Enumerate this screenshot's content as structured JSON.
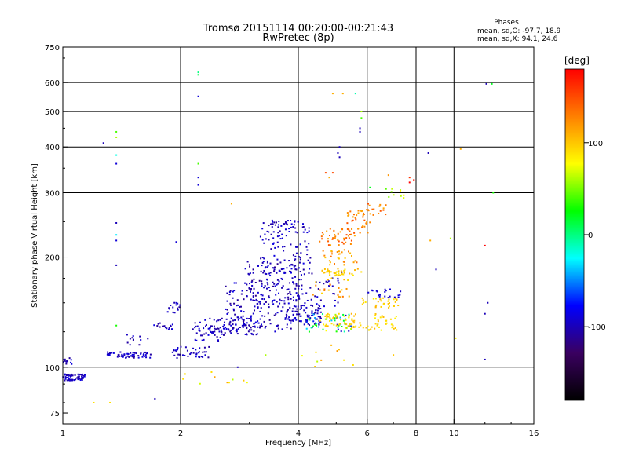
{
  "chart_data": {
    "type": "scatter",
    "title": "Tromsø 20151114 00:20:00-00:21:43",
    "subtitle": "RwPretec (8p)",
    "xlabel": "Frequency [MHz]",
    "ylabel": "Stationary phase Virtual Height [km]",
    "x_scale": "log",
    "y_scale": "log",
    "xlim": [
      1,
      16
    ],
    "ylim": [
      70,
      750
    ],
    "x_ticks": [
      1,
      2,
      4,
      6,
      8,
      10,
      16
    ],
    "x_tick_labels": [
      "1",
      "2",
      "4",
      "6",
      "8",
      "10",
      "16"
    ],
    "x_grid": [
      2,
      4,
      6,
      8,
      10
    ],
    "y_ticks": [
      75,
      100,
      200,
      300,
      400,
      500,
      600,
      750
    ],
    "y_tick_labels": [
      "75",
      "100",
      "200",
      "300",
      "400",
      "500",
      "600",
      "750"
    ],
    "y_grid": [
      100,
      200,
      300,
      400,
      500,
      600
    ],
    "grid": true,
    "phases_box": {
      "title": "Phases",
      "line_o": "mean, sd,O: -97.7, 18.9",
      "line_x": "mean, sd,X:  94.1, 24.6"
    },
    "colorbar": {
      "label": "[deg]",
      "range": [
        -180,
        180
      ],
      "tick_values": [
        100,
        0,
        -100
      ],
      "tick_labels": [
        "100",
        "0",
        "-100"
      ],
      "colormap": [
        "#000000",
        "#3a0060",
        "#0000ff",
        "#00ffff",
        "#00ff00",
        "#ffff00",
        "#ff8000",
        "#ff0000"
      ]
    },
    "clusters": [
      {
        "x": [
          1.0,
          1.14
        ],
        "y": [
          92,
          96
        ],
        "n": 60,
        "phase": [
          -110,
          -85
        ]
      },
      {
        "x": [
          1.0,
          1.06
        ],
        "y": [
          102,
          106
        ],
        "n": 12,
        "phase": [
          -110,
          -85
        ]
      },
      {
        "x": [
          1.3,
          1.35
        ],
        "y": [
          107,
          110
        ],
        "n": 10,
        "phase": [
          -110,
          -85
        ]
      },
      {
        "x": [
          1.38,
          1.7
        ],
        "y": [
          106,
          110
        ],
        "n": 50,
        "phase": [
          -110,
          -85
        ]
      },
      {
        "x": [
          1.45,
          1.65
        ],
        "y": [
          115,
          123
        ],
        "n": 12,
        "phase": [
          -110,
          -85
        ]
      },
      {
        "x": [
          1.7,
          1.92
        ],
        "y": [
          126,
          132
        ],
        "n": 15,
        "phase": [
          -110,
          -85
        ]
      },
      {
        "x": [
          1.85,
          2.0
        ],
        "y": [
          140,
          152
        ],
        "n": 15,
        "phase": [
          -110,
          -85
        ]
      },
      {
        "x": [
          1.9,
          2.4
        ],
        "y": [
          106,
          114
        ],
        "n": 40,
        "phase": [
          -110,
          -85
        ]
      },
      {
        "x": [
          2.1,
          2.6
        ],
        "y": [
          115,
          135
        ],
        "n": 40,
        "phase": [
          -110,
          -85
        ]
      },
      {
        "x": [
          2.2,
          3.2
        ],
        "y": [
          122,
          136
        ],
        "n": 80,
        "phase": [
          -110,
          -85
        ]
      },
      {
        "x": [
          2.6,
          3.9
        ],
        "y": [
          125,
          170
        ],
        "n": 160,
        "phase": [
          -115,
          -85
        ]
      },
      {
        "x": [
          2.9,
          4.2
        ],
        "y": [
          150,
          195
        ],
        "n": 90,
        "phase": [
          -115,
          -85
        ]
      },
      {
        "x": [
          3.2,
          4.3
        ],
        "y": [
          180,
          250
        ],
        "n": 100,
        "phase": [
          -110,
          -85
        ]
      },
      {
        "x": [
          3.4,
          4.0
        ],
        "y": [
          240,
          252
        ],
        "n": 25,
        "phase": [
          -110,
          -85
        ]
      },
      {
        "x": [
          3.7,
          4.6
        ],
        "y": [
          130,
          148
        ],
        "n": 80,
        "phase": [
          -110,
          -85
        ]
      },
      {
        "x": [
          3.8,
          5.2
        ],
        "y": [
          145,
          185
        ],
        "n": 50,
        "phase": [
          -110,
          -85
        ]
      },
      {
        "x": [
          4.2,
          5.5
        ],
        "y": [
          125,
          140
        ],
        "n": 60,
        "phase": [
          -100,
          90
        ]
      },
      {
        "x": [
          4.6,
          5.6
        ],
        "y": [
          128,
          140
        ],
        "n": 50,
        "phase": [
          85,
          110
        ]
      },
      {
        "x": [
          4.6,
          5.8
        ],
        "y": [
          178,
          186
        ],
        "n": 40,
        "phase": [
          85,
          110
        ]
      },
      {
        "x": [
          4.6,
          5.7
        ],
        "y": [
          190,
          210
        ],
        "n": 30,
        "phase": [
          95,
          140
        ]
      },
      {
        "x": [
          4.5,
          5.6
        ],
        "y": [
          215,
          240
        ],
        "n": 40,
        "phase": [
          110,
          150
        ]
      },
      {
        "x": [
          5.3,
          6.1
        ],
        "y": [
          230,
          270
        ],
        "n": 40,
        "phase": [
          110,
          150
        ]
      },
      {
        "x": [
          4.3,
          5.4
        ],
        "y": [
          155,
          175
        ],
        "n": 25,
        "phase": [
          90,
          140
        ]
      },
      {
        "x": [
          5.6,
          7.2
        ],
        "y": [
          126,
          140
        ],
        "n": 40,
        "phase": [
          80,
          105
        ]
      },
      {
        "x": [
          5.8,
          7.2
        ],
        "y": [
          145,
          155
        ],
        "n": 30,
        "phase": [
          85,
          110
        ]
      },
      {
        "x": [
          5.9,
          7.3
        ],
        "y": [
          155,
          165
        ],
        "n": 20,
        "phase": [
          -100,
          -85
        ]
      },
      {
        "x": [
          6.0,
          6.7
        ],
        "y": [
          260,
          280
        ],
        "n": 15,
        "phase": [
          110,
          150
        ]
      },
      {
        "x": [
          6.7,
          7.5
        ],
        "y": [
          290,
          310
        ],
        "n": 10,
        "phase": [
          40,
          90
        ]
      },
      {
        "x": [
          4.0,
          6.0
        ],
        "y": [
          100,
          115
        ],
        "n": 10,
        "phase": [
          60,
          130
        ]
      },
      {
        "x": [
          2.0,
          3.0
        ],
        "y": [
          90,
          96
        ],
        "n": 8,
        "phase": [
          60,
          120
        ]
      }
    ],
    "stray_points": [
      {
        "x": 2.22,
        "y": 640,
        "phase": 0
      },
      {
        "x": 2.22,
        "y": 630,
        "phase": 10
      },
      {
        "x": 2.22,
        "y": 550,
        "phase": -90
      },
      {
        "x": 2.22,
        "y": 360,
        "phase": 40
      },
      {
        "x": 2.22,
        "y": 330,
        "phase": -90
      },
      {
        "x": 2.22,
        "y": 315,
        "phase": -90
      },
      {
        "x": 1.27,
        "y": 410,
        "phase": -100
      },
      {
        "x": 1.37,
        "y": 440,
        "phase": 40
      },
      {
        "x": 1.37,
        "y": 425,
        "phase": 60
      },
      {
        "x": 1.37,
        "y": 380,
        "phase": -20
      },
      {
        "x": 1.37,
        "y": 360,
        "phase": -90
      },
      {
        "x": 1.37,
        "y": 248,
        "phase": -100
      },
      {
        "x": 1.37,
        "y": 230,
        "phase": -30
      },
      {
        "x": 1.37,
        "y": 222,
        "phase": -90
      },
      {
        "x": 1.37,
        "y": 190,
        "phase": -100
      },
      {
        "x": 1.37,
        "y": 130,
        "phase": 30
      },
      {
        "x": 1.2,
        "y": 80,
        "phase": 90
      },
      {
        "x": 1.32,
        "y": 80,
        "phase": 90
      },
      {
        "x": 1.72,
        "y": 82,
        "phase": -100
      },
      {
        "x": 1.95,
        "y": 220,
        "phase": -90
      },
      {
        "x": 2.7,
        "y": 280,
        "phase": 110
      },
      {
        "x": 2.8,
        "y": 100,
        "phase": -100
      },
      {
        "x": 4.9,
        "y": 560,
        "phase": 110
      },
      {
        "x": 5.2,
        "y": 560,
        "phase": 110
      },
      {
        "x": 5.6,
        "y": 560,
        "phase": -10
      },
      {
        "x": 5.8,
        "y": 500,
        "phase": 60
      },
      {
        "x": 5.8,
        "y": 480,
        "phase": 40
      },
      {
        "x": 5.75,
        "y": 450,
        "phase": -100
      },
      {
        "x": 5.75,
        "y": 440,
        "phase": -100
      },
      {
        "x": 5.1,
        "y": 400,
        "phase": -100
      },
      {
        "x": 5.05,
        "y": 385,
        "phase": -100
      },
      {
        "x": 5.1,
        "y": 375,
        "phase": -100
      },
      {
        "x": 4.7,
        "y": 340,
        "phase": 150
      },
      {
        "x": 4.9,
        "y": 340,
        "phase": 150
      },
      {
        "x": 4.8,
        "y": 330,
        "phase": 110
      },
      {
        "x": 6.1,
        "y": 310,
        "phase": 20
      },
      {
        "x": 6.8,
        "y": 335,
        "phase": 120
      },
      {
        "x": 7.7,
        "y": 320,
        "phase": 180
      },
      {
        "x": 7.7,
        "y": 330,
        "phase": 160
      },
      {
        "x": 7.9,
        "y": 325,
        "phase": 170
      },
      {
        "x": 8.6,
        "y": 385,
        "phase": -100
      },
      {
        "x": 10.4,
        "y": 395,
        "phase": 110
      },
      {
        "x": 12.1,
        "y": 595,
        "phase": -100
      },
      {
        "x": 12.5,
        "y": 595,
        "phase": 20
      },
      {
        "x": 12.6,
        "y": 300,
        "phase": 30
      },
      {
        "x": 12.0,
        "y": 215,
        "phase": 180
      },
      {
        "x": 8.7,
        "y": 222,
        "phase": 110
      },
      {
        "x": 9.8,
        "y": 225,
        "phase": 60
      },
      {
        "x": 9.0,
        "y": 185,
        "phase": -100
      },
      {
        "x": 12.0,
        "y": 140,
        "phase": -100
      },
      {
        "x": 12.2,
        "y": 150,
        "phase": -100
      },
      {
        "x": 10.1,
        "y": 120,
        "phase": 80
      },
      {
        "x": 12.0,
        "y": 105,
        "phase": -100
      },
      {
        "x": 7.0,
        "y": 108,
        "phase": 100
      },
      {
        "x": 3.3,
        "y": 108,
        "phase": 60
      },
      {
        "x": 2.4,
        "y": 97,
        "phase": 90
      },
      {
        "x": 2.9,
        "y": 92,
        "phase": 100
      }
    ]
  }
}
